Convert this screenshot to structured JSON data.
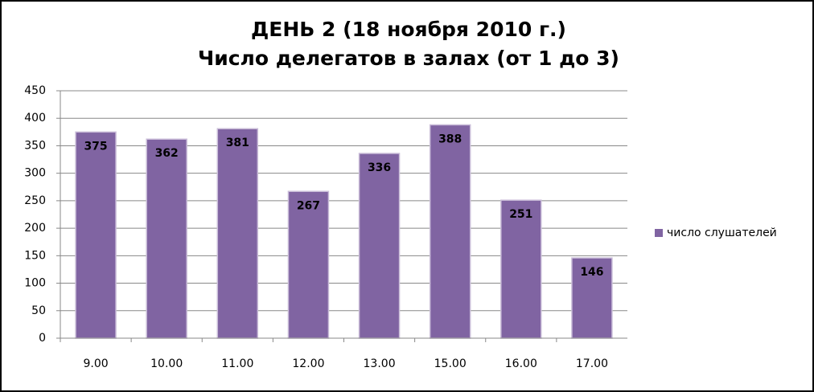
{
  "chart_data": {
    "type": "bar",
    "title": "ДЕНЬ 2 (18 ноября 2010 г.)",
    "subtitle": "Число делегатов в залах (от 1 до 3)",
    "categories": [
      "9.00",
      "10.00",
      "11.00",
      "12.00",
      "13.00",
      "15.00",
      "16.00",
      "17.00"
    ],
    "series": [
      {
        "name": "число слушателей",
        "color": "#8064a2",
        "values": [
          375,
          362,
          381,
          267,
          336,
          388,
          251,
          146
        ]
      }
    ],
    "ylim": [
      0,
      450
    ],
    "yticks": [
      0,
      50,
      100,
      150,
      200,
      250,
      300,
      350,
      400,
      450
    ],
    "grid": true,
    "legend": "right",
    "data_labels": true
  }
}
